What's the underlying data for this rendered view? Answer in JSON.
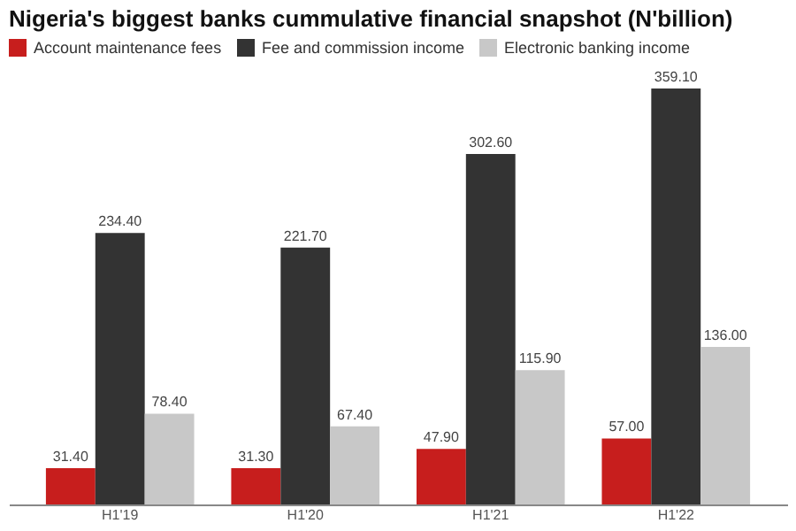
{
  "chart_data": {
    "type": "bar",
    "title": "Nigeria's biggest banks cummulative financial snapshot (N'billion)",
    "categories": [
      "H1'19",
      "H1'20",
      "H1'21",
      "H1'22"
    ],
    "series": [
      {
        "name": "Account maintenance fees",
        "color": "#c71e1d",
        "values": [
          31.4,
          31.3,
          47.9,
          57.0
        ],
        "value_labels": [
          "31.40",
          "31.30",
          "47.90",
          "57.00"
        ]
      },
      {
        "name": "Fee and commission income",
        "color": "#333333",
        "values": [
          234.4,
          221.7,
          302.6,
          359.1
        ],
        "value_labels": [
          "234.40",
          "221.70",
          "302.60",
          "359.10"
        ]
      },
      {
        "name": "Electronic banking income",
        "color": "#c8c8c8",
        "values": [
          78.4,
          67.4,
          115.9,
          136.0
        ],
        "value_labels": [
          "78.40",
          "67.40",
          "115.90",
          "136.00"
        ]
      }
    ],
    "legend": "top left",
    "grid": false
  }
}
